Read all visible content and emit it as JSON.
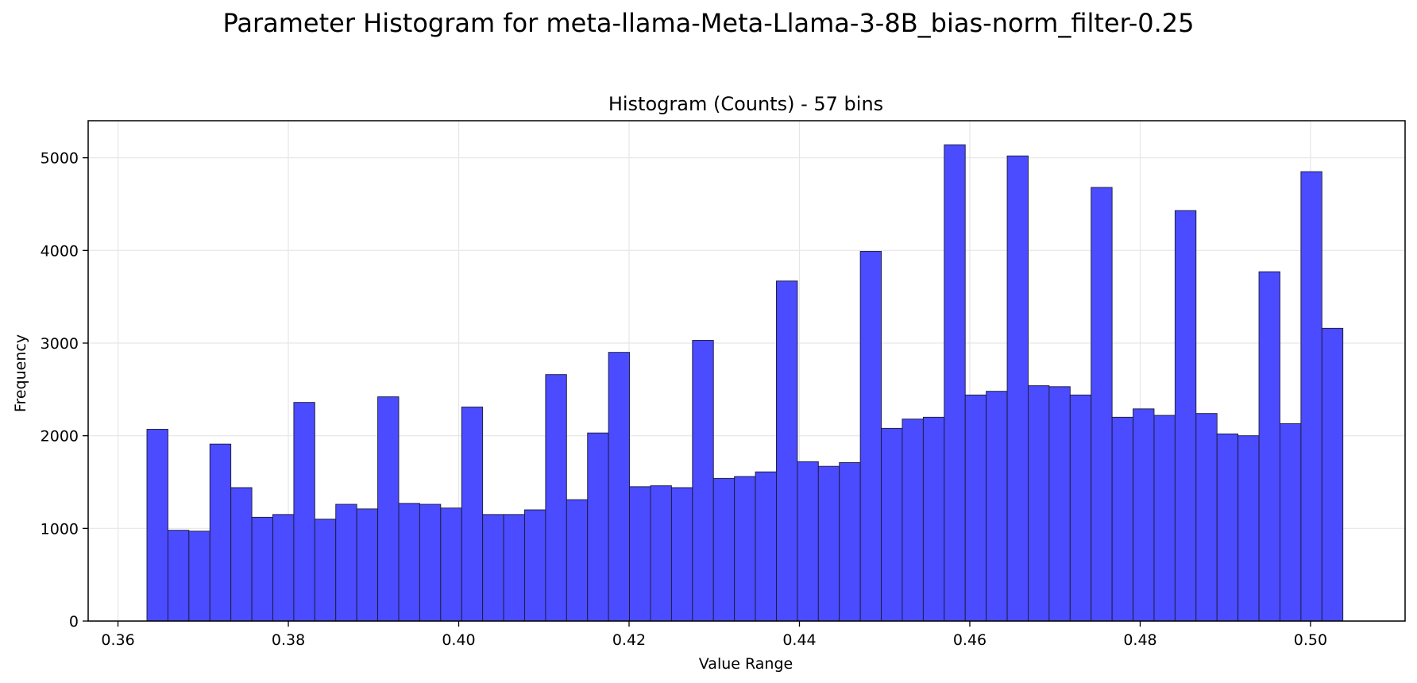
{
  "figure": {
    "suptitle": "Parameter Histogram for meta-llama-Meta-Llama-3-8B_bias-norm_filter-0.25"
  },
  "chart_data": {
    "type": "bar",
    "title": "Histogram (Counts) - 57 bins",
    "xlabel": "Value Range",
    "ylabel": "Frequency",
    "bins": 57,
    "x_range": [
      0.3634,
      0.5038
    ],
    "xlim": [
      0.3565,
      0.5111
    ],
    "ylim": [
      0,
      5400
    ],
    "xticks": [
      0.36,
      0.38,
      0.4,
      0.42,
      0.44,
      0.46,
      0.48,
      0.5
    ],
    "xtick_labels": [
      "0.36",
      "0.38",
      "0.40",
      "0.42",
      "0.44",
      "0.46",
      "0.48",
      "0.50"
    ],
    "yticks": [
      0,
      1000,
      2000,
      3000,
      4000,
      5000
    ],
    "ytick_labels": [
      "0",
      "1000",
      "2000",
      "3000",
      "4000",
      "5000"
    ],
    "grid": true,
    "bar_color": "#4b4bff",
    "edge_color": "#1a1a33",
    "values": [
      2070,
      980,
      970,
      1910,
      1440,
      1120,
      1150,
      2360,
      1100,
      1260,
      1210,
      2420,
      1270,
      1260,
      1220,
      2310,
      1150,
      1150,
      1200,
      2660,
      1310,
      2030,
      2900,
      1450,
      1460,
      1440,
      3030,
      1540,
      1560,
      1610,
      3670,
      1720,
      1670,
      1710,
      3990,
      2080,
      2180,
      2200,
      5140,
      2440,
      2480,
      5020,
      2540,
      2530,
      2440,
      4680,
      2200,
      2290,
      2220,
      4430,
      2240,
      2020,
      2000,
      3770,
      2130,
      4850,
      3160
    ]
  }
}
